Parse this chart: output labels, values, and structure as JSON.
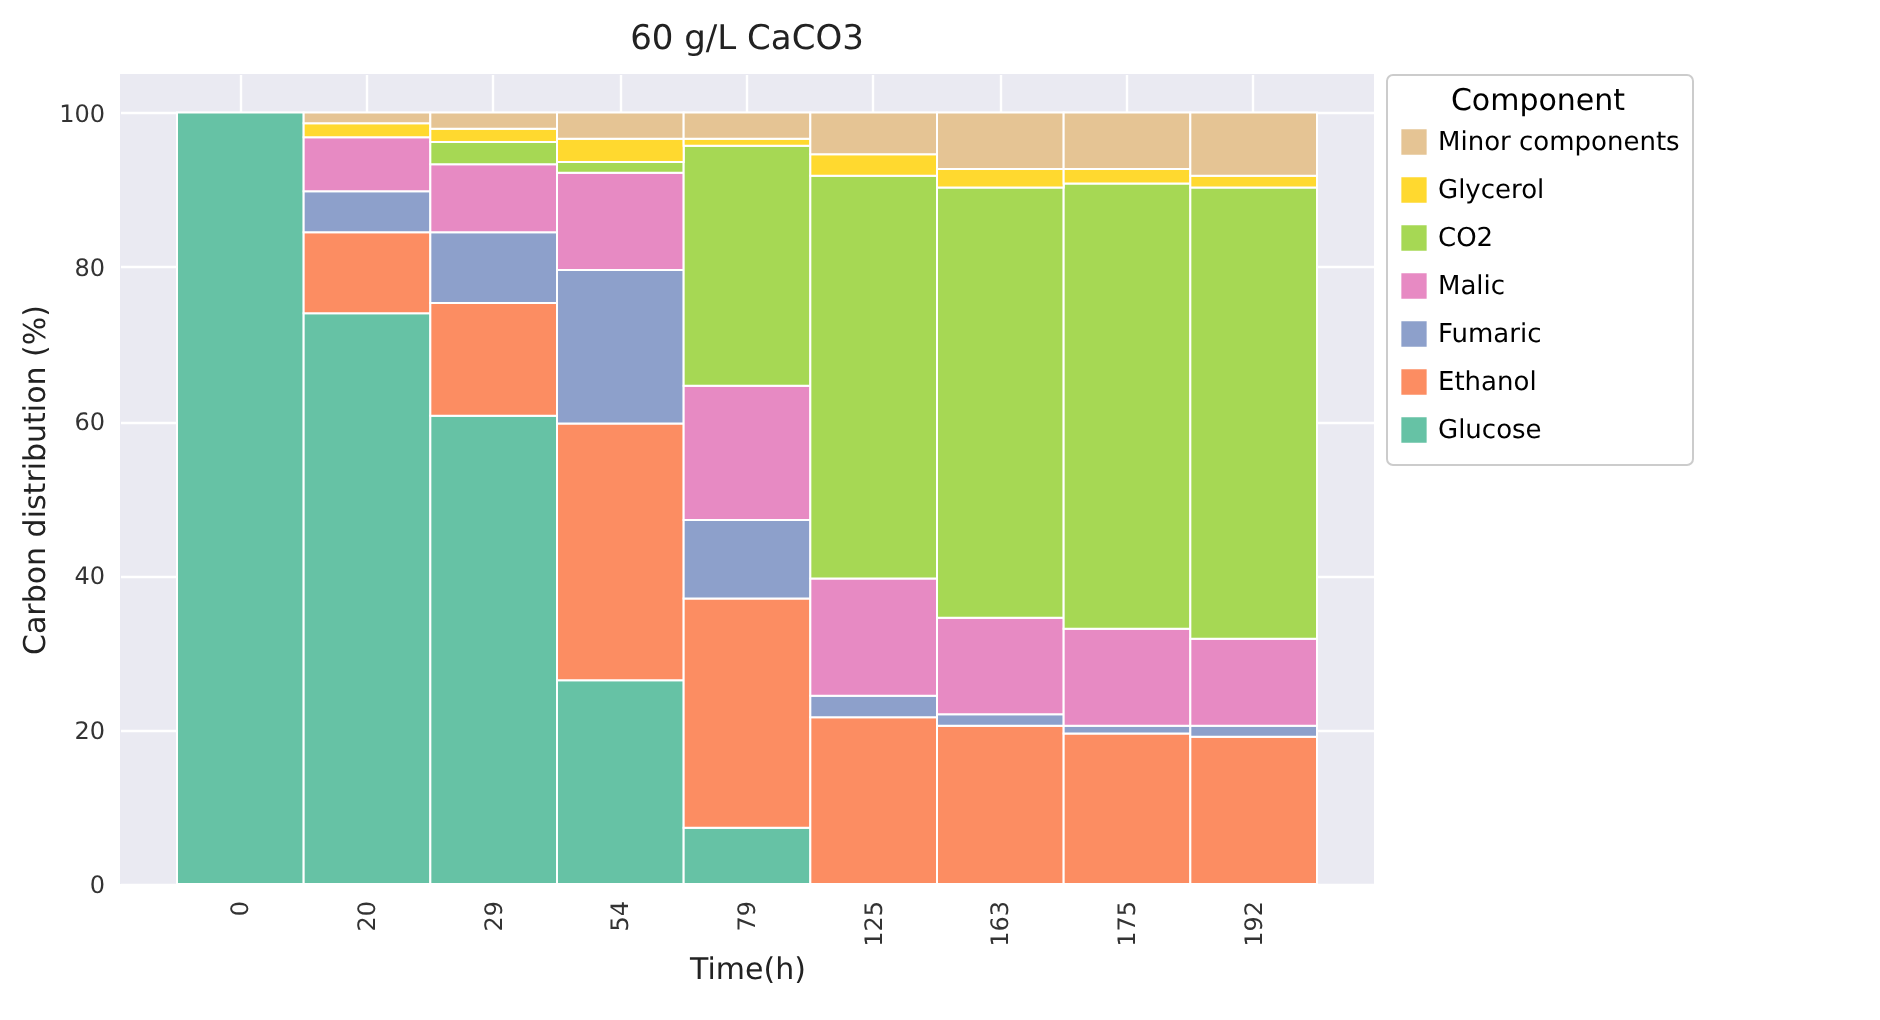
{
  "chart_data": {
    "type": "bar",
    "stacked": true,
    "title": "60 g/L CaCO3",
    "xlabel": "Time(h)",
    "ylabel": "Carbon distribution (%)",
    "legend_title": "Component",
    "legend": "right",
    "grid": true,
    "categories": [
      "0",
      "20",
      "29",
      "54",
      "79",
      "125",
      "163",
      "175",
      "192"
    ],
    "ylim": [
      0,
      105
    ],
    "yticks": [
      0,
      20,
      40,
      60,
      80,
      100
    ],
    "series": [
      {
        "name": "Glucose",
        "color": "#66c2a5",
        "values": [
          100,
          74,
          60.7,
          26.4,
          7.3,
          null,
          null,
          null,
          null
        ]
      },
      {
        "name": "Ethanol",
        "color": "#fc8d62",
        "values": [
          null,
          10.5,
          14.6,
          33.3,
          29.7,
          21.6,
          20.5,
          19.5,
          19.1
        ]
      },
      {
        "name": "Fumaric",
        "color": "#8da0cb",
        "values": [
          null,
          5.3,
          9.2,
          19.9,
          10.2,
          2.8,
          1.5,
          1,
          1.4
        ]
      },
      {
        "name": "Malic",
        "color": "#e78ac3",
        "values": [
          null,
          7,
          8.8,
          12.6,
          17.4,
          15.2,
          12.5,
          12.6,
          11.3
        ]
      },
      {
        "name": "CO2",
        "color": "#a6d854",
        "values": [
          null,
          null,
          2.9,
          1.4,
          31.1,
          52.2,
          55.8,
          57.7,
          58.5
        ]
      },
      {
        "name": "Glycerol",
        "color": "#ffd92f",
        "values": [
          null,
          1.8,
          1.7,
          3,
          0.9,
          2.8,
          2.4,
          1.9,
          1.5
        ]
      },
      {
        "name": "Minor components",
        "color": "#e5c494",
        "values": [
          null,
          1.4,
          2.1,
          3.4,
          3.4,
          5.4,
          7.3,
          7.3,
          8.2
        ]
      }
    ]
  }
}
